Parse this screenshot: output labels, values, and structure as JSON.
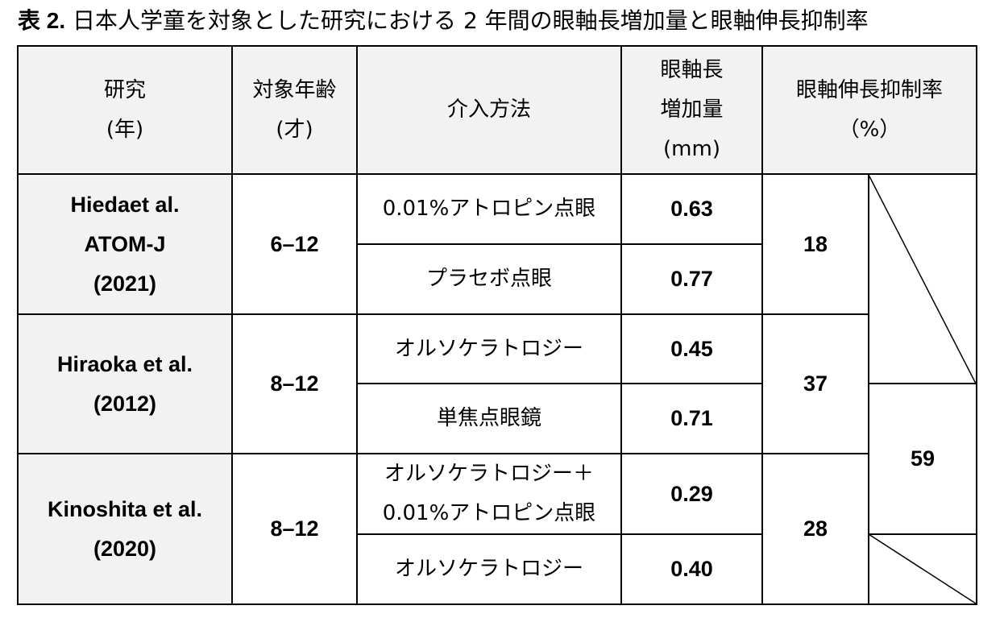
{
  "title": {
    "label": "表 2.",
    "text": "日本人学童を対象とした研究における 2 年間の眼軸長増加量と眼軸伸長抑制率"
  },
  "table": {
    "header": [
      [
        "研究",
        "(年)"
      ],
      [
        "対象年齢",
        "(才)"
      ],
      [
        "介入方法"
      ],
      [
        "眼軸長",
        "増加量",
        "(mm)"
      ],
      [
        "眼軸伸長抑制率",
        "（%）"
      ]
    ],
    "studies": [
      {
        "name": [
          "Hiedaet al.",
          "ATOM-J",
          "(2021)"
        ],
        "age": "6–12",
        "arms": [
          {
            "method": [
              "0.01%アトロピン点眼"
            ],
            "increase": "0.63"
          },
          {
            "method": [
              "プラセボ点眼"
            ],
            "increase": "0.77"
          }
        ],
        "inhibition": "18"
      },
      {
        "name": [
          "Hiraoka et al.",
          "(2012)"
        ],
        "age": "8–12",
        "arms": [
          {
            "method": [
              "オルソケラトロジー"
            ],
            "increase": "0.45"
          },
          {
            "method": [
              "単焦点眼鏡"
            ],
            "increase": "0.71"
          }
        ],
        "inhibition": "37"
      },
      {
        "name": [
          "Kinoshita et al.",
          "(2020)"
        ],
        "age": "8–12",
        "arms": [
          {
            "method": [
              "オルソケラトロジー＋",
              "0.01%アトロピン点眼"
            ],
            "increase": "0.29"
          },
          {
            "method": [
              "オルソケラトロジー"
            ],
            "increase": "0.40"
          }
        ],
        "inhibition": "28"
      }
    ],
    "combined_inhibition": "59"
  }
}
